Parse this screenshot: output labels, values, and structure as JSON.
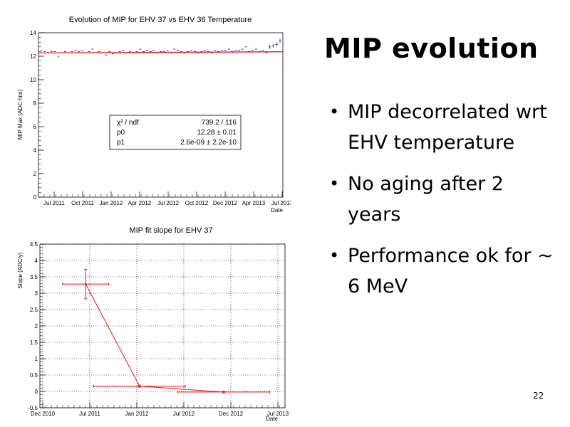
{
  "slide": {
    "title": "MIP evolution",
    "bullets": [
      "MIP decorrelated wrt EHV temperature",
      "No aging after 2 years",
      "Performance ok for ~ 6 MeV"
    ],
    "page_number": "22"
  },
  "colors": {
    "fit_line": "#e8141b",
    "data_points": "#2233cc",
    "slope_series": "#e8141b"
  },
  "chart_data": [
    {
      "type": "scatter",
      "title": "Evolution of MIP for EHV 37 vs EHV 36 Temperature",
      "xlabel": "Date",
      "ylabel": "MIP Max (ADC hits)",
      "ylim": [
        0,
        14
      ],
      "yticks": [
        "0",
        "2",
        "4",
        "6",
        "8",
        "10",
        "12",
        "14"
      ],
      "xticks": [
        "Jul 2011",
        "Oct 2011",
        "Jan 2012",
        "Apr 2012",
        "Jul 2012",
        "Oct 2012",
        "Dec 2012",
        "Apr 2013",
        "Jul 2013"
      ],
      "points_y": [
        12.5,
        12.4,
        12.3,
        12.4,
        12.4,
        12.0,
        12.3,
        12.4,
        12.3,
        12.4,
        12.5,
        12.4,
        12.5,
        12.3,
        12.4,
        12.6,
        12.3,
        12.4,
        12.3,
        12.1,
        12.4,
        12.2,
        12.3,
        12.4,
        12.5,
        12.3,
        12.4,
        12.3,
        12.4,
        12.6,
        12.4,
        12.5,
        12.4,
        12.5,
        12.3,
        12.4,
        12.4,
        12.5,
        12.3,
        12.6,
        12.5,
        12.4,
        12.3,
        12.4,
        12.5,
        12.4,
        12.3,
        12.4,
        12.5,
        12.4,
        12.3,
        12.5,
        12.4,
        12.5,
        12.5,
        12.6,
        12.4,
        12.5,
        12.5,
        12.6,
        12.8,
        12.4,
        12.5,
        12.6,
        12.4,
        12.5,
        12.3,
        12.8,
        12.9,
        13.0,
        13.3
      ],
      "fit": {
        "p0": 12.28,
        "p1": 2.6e-09
      },
      "stats_box": [
        {
          "label": "χ² / ndf",
          "value": "739.2 / 116"
        },
        {
          "label": "p0",
          "value": "12.28 ± 0.01"
        },
        {
          "label": "p1",
          "value": "2.6e-09 ± 2.2e-10"
        }
      ],
      "grid": false
    },
    {
      "type": "line",
      "title": "MIP fit slope for EHV 37",
      "xlabel": "Date",
      "ylabel": "Slope (ADC/y)",
      "xlim": [
        "2010-12-01",
        "2013-08-01"
      ],
      "ylim": [
        -0.5,
        4.5
      ],
      "yticks": [
        "-0.5",
        "0",
        "0.5",
        "1",
        "1.5",
        "2",
        "2.5",
        "3",
        "3.5",
        "4",
        "4.5"
      ],
      "xticks": [
        "Dec 2010",
        "Jul 2011",
        "Jan 2012",
        "Jul 2012",
        "Dec 2012",
        "Jul 2013"
      ],
      "points": [
        {
          "x": "2011-06-01",
          "y": 3.28,
          "x_err_months": 3,
          "y_err": 0.45
        },
        {
          "x": "2012-01-01",
          "y": 0.16,
          "x_err_months": 6,
          "y_err": 0.03
        },
        {
          "x": "2012-12-01",
          "y": -0.02,
          "x_err_months": 6,
          "y_err": 0.03
        }
      ],
      "extra_h_bars": [
        {
          "x_from": "2011-07-01",
          "x_to": "2012-01-01",
          "y": 0.16
        }
      ],
      "grid": true
    }
  ]
}
